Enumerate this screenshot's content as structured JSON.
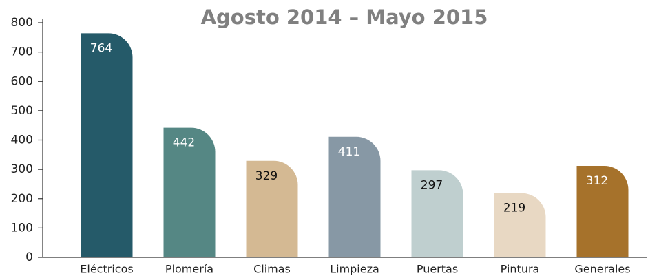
{
  "chart_data": {
    "type": "bar",
    "title": "Agosto 2014 – Mayo 2015",
    "categories": [
      "Eléctricos",
      "Plomería",
      "Climas",
      "Limpieza",
      "Puertas",
      "Pintura",
      "Generales"
    ],
    "values": [
      764,
      442,
      329,
      411,
      297,
      219,
      312
    ],
    "colors": [
      "#255a69",
      "#558784",
      "#d4b993",
      "#8798a5",
      "#bfcfcf",
      "#e8d8c3",
      "#a6722b"
    ],
    "label_colors": [
      "#ffffff",
      "#ffffff",
      "#111111",
      "#ffffff",
      "#111111",
      "#111111",
      "#ffffff"
    ],
    "ylim": [
      0,
      800
    ],
    "yticks": [
      0,
      100,
      200,
      300,
      400,
      500,
      600,
      700,
      800
    ],
    "grid": false
  }
}
